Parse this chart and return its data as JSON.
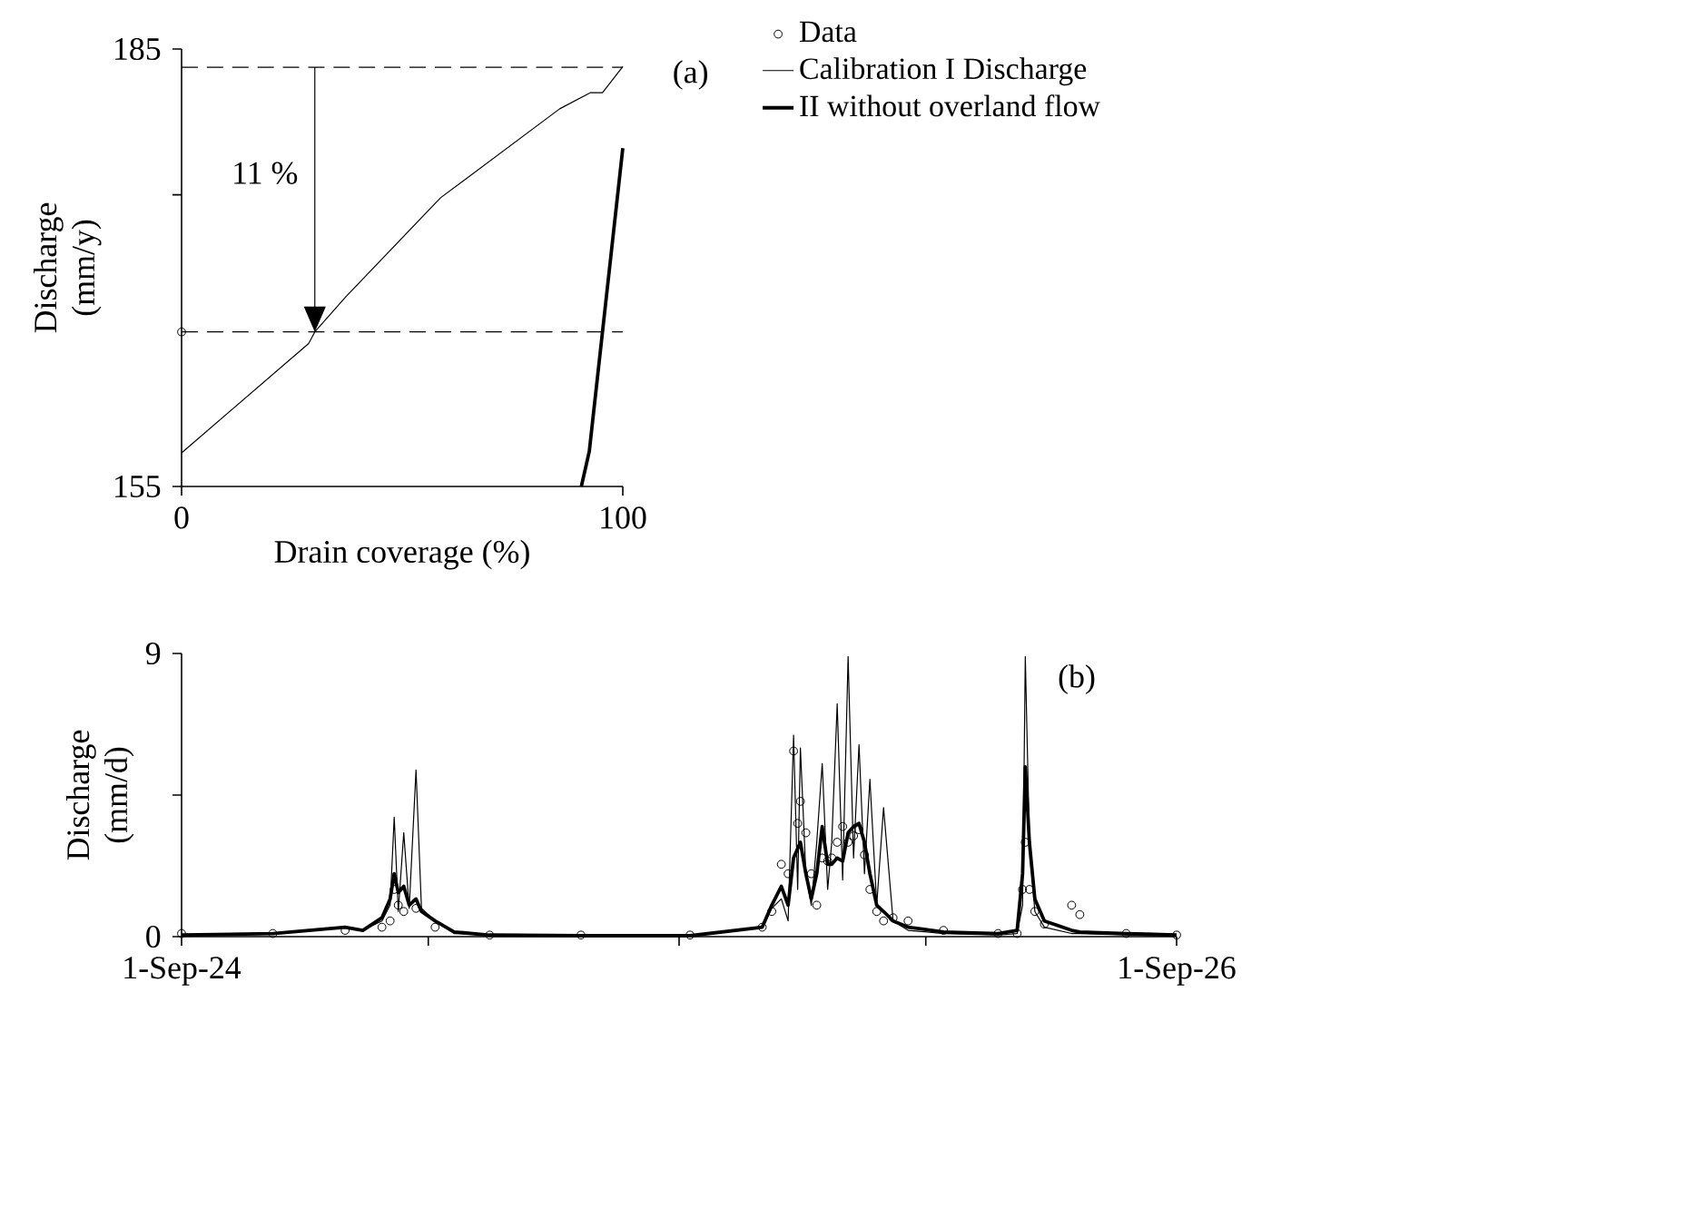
{
  "chart_data": [
    {
      "type": "line",
      "xlabel": "Drain coverage (%)",
      "ylabel": "Discharge (mm/y)",
      "xlim": [
        0,
        100
      ],
      "ylim": [
        155,
        185
      ],
      "xticks": [
        0,
        100
      ],
      "yticks": [
        155,
        {
          "value": 175,
          "label": null
        },
        185
      ],
      "legend": "right",
      "annotations": [
        "(a)",
        "11 %"
      ],
      "ref_lines": [
        {
          "axis": "y",
          "value": 183.75,
          "line_style": "dashed",
          "color": "#000000"
        },
        {
          "axis": "y",
          "value": 165.6,
          "line_style": "dashed",
          "color": "#000000"
        }
      ],
      "series": [
        {
          "name": "Data",
          "type": "scatter",
          "marker": "circle",
          "color": "#000000",
          "x": [
            0
          ],
          "values": [
            165.6
          ]
        },
        {
          "name": "Calibration I Discharge",
          "color": "#000000",
          "x": [
            0,
            28.8,
            30.2,
            37.2,
            58.7,
            85.7,
            92.6,
            95.4,
            100
          ],
          "values": [
            157.3,
            164.8,
            165.6,
            168,
            174.8,
            180.9,
            182,
            182,
            183.8
          ]
        },
        {
          "name": "II without overland flow",
          "color": "#000000",
          "x": [
            90.6,
            92.4,
            100
          ],
          "values": [
            155,
            157.4,
            178.2
          ]
        }
      ]
    },
    {
      "type": "line",
      "ylabel": "Discharge (mm/d)",
      "xlim": [
        "1924-09-01",
        "1926-09-01"
      ],
      "ylim": [
        0,
        9
      ],
      "xticks": [
        {
          "value": "1924-09-01",
          "label": "1-Sep-24"
        },
        {
          "value": "1925-03-01",
          "label": null
        },
        {
          "value": "1925-09-01",
          "label": null
        },
        {
          "value": "1926-03-01",
          "label": null
        },
        {
          "value": "1926-09-01",
          "label": "1-Sep-26"
        }
      ],
      "yticks": [
        0,
        {
          "value": 4.5,
          "label": null
        },
        9
      ],
      "annotations": [
        "(b)"
      ],
      "series": [
        {
          "type": "scatter",
          "marker": "circle",
          "color": "#000000",
          "x": [
            "1924-09-01",
            "1924-11-07",
            "1924-12-30",
            "1925-01-26",
            "1925-02-01",
            "1925-02-04",
            "1925-02-07",
            "1925-02-11",
            "1925-02-20",
            "1925-03-06",
            "1925-04-15",
            "1925-06-21",
            "1925-09-09",
            "1925-11-01",
            "1925-11-08",
            "1925-11-15",
            "1925-11-20",
            "1925-11-24",
            "1925-11-27",
            "1925-11-29",
            "1925-12-03",
            "1925-12-07",
            "1925-12-11",
            "1925-12-15",
            "1925-12-19",
            "1925-12-22",
            "1925-12-26",
            "1925-12-30",
            "1926-01-03",
            "1926-01-07",
            "1926-01-11",
            "1926-01-15",
            "1926-01-19",
            "1926-01-24",
            "1926-01-29",
            "1926-02-05",
            "1926-02-16",
            "1926-03-14",
            "1926-04-23",
            "1926-05-07",
            "1926-05-11",
            "1926-05-13",
            "1926-05-16",
            "1926-05-20",
            "1926-05-27",
            "1926-06-16",
            "1926-06-22",
            "1926-07-26",
            "1926-09-01"
          ],
          "values": [
            0.1,
            0.1,
            0.2,
            0.3,
            0.5,
            1.5,
            1.0,
            0.8,
            0.9,
            0.3,
            0.05,
            0.05,
            0.05,
            0.3,
            0.8,
            2.3,
            2.0,
            5.9,
            3.6,
            4.3,
            3.3,
            2.0,
            1.0,
            2.5,
            2.4,
            2.5,
            3.0,
            3.5,
            3.0,
            3.2,
            3.4,
            2.6,
            1.5,
            0.8,
            0.5,
            0.6,
            0.5,
            0.2,
            0.1,
            0.1,
            1.5,
            3.0,
            1.5,
            0.8,
            0.4,
            1.0,
            0.7,
            0.1,
            0.05
          ]
        },
        {
          "color": "#000000",
          "x": [
            "1924-09-01",
            "1924-11-07",
            "1924-12-30",
            "1925-01-12",
            "1925-01-26",
            "1925-02-01",
            "1925-02-04",
            "1925-02-07",
            "1925-02-11",
            "1925-02-15",
            "1925-02-20",
            "1925-02-24",
            "1925-03-06",
            "1925-03-20",
            "1925-04-15",
            "1925-06-21",
            "1925-09-09",
            "1925-11-01",
            "1925-11-08",
            "1925-11-15",
            "1925-11-20",
            "1925-11-24",
            "1925-11-27",
            "1925-11-29",
            "1925-12-03",
            "1925-12-07",
            "1925-12-11",
            "1925-12-15",
            "1925-12-19",
            "1925-12-22",
            "1925-12-26",
            "1925-12-30",
            "1926-01-03",
            "1926-01-07",
            "1926-01-11",
            "1926-01-15",
            "1926-01-19",
            "1926-01-24",
            "1926-01-29",
            "1926-02-05",
            "1926-02-16",
            "1926-03-14",
            "1926-04-23",
            "1926-05-07",
            "1926-05-11",
            "1926-05-13",
            "1926-05-16",
            "1926-05-20",
            "1926-05-27",
            "1926-06-16",
            "1926-06-22",
            "1926-07-26",
            "1926-09-01"
          ],
          "values": [
            0.05,
            0.1,
            0.3,
            0.2,
            0.5,
            1.0,
            3.8,
            0.8,
            3.3,
            0.9,
            5.3,
            0.9,
            0.5,
            0.1,
            0.05,
            0.02,
            0.02,
            0.3,
            0.9,
            1.2,
            0.5,
            6.4,
            1.5,
            6.0,
            2.0,
            1.0,
            3.0,
            5.5,
            1.5,
            3.0,
            7.4,
            1.8,
            8.9,
            2.5,
            6.1,
            2.0,
            5.0,
            1.0,
            4.1,
            0.5,
            0.2,
            0.1,
            0.05,
            0.1,
            1.0,
            8.9,
            3.0,
            0.8,
            0.3,
            0.1,
            0.1,
            0.05,
            0.02
          ]
        },
        {
          "color": "#000000",
          "x": [
            "1924-09-01",
            "1924-11-07",
            "1924-12-30",
            "1925-01-12",
            "1925-01-26",
            "1925-02-01",
            "1925-02-04",
            "1925-02-07",
            "1925-02-11",
            "1925-02-15",
            "1925-02-20",
            "1925-02-24",
            "1925-03-06",
            "1925-03-20",
            "1925-04-15",
            "1925-06-21",
            "1925-09-09",
            "1925-11-01",
            "1925-11-08",
            "1925-11-15",
            "1925-11-20",
            "1925-11-24",
            "1925-11-27",
            "1925-11-29",
            "1925-12-03",
            "1925-12-07",
            "1925-12-11",
            "1925-12-15",
            "1925-12-19",
            "1925-12-22",
            "1925-12-26",
            "1925-12-30",
            "1926-01-03",
            "1926-01-07",
            "1926-01-11",
            "1926-01-15",
            "1926-01-19",
            "1926-01-24",
            "1926-01-29",
            "1926-02-05",
            "1926-02-16",
            "1926-03-14",
            "1926-04-23",
            "1926-05-07",
            "1926-05-11",
            "1926-05-13",
            "1926-05-16",
            "1926-05-20",
            "1926-05-27",
            "1926-06-16",
            "1926-06-22",
            "1926-07-26",
            "1926-09-01"
          ],
          "values": [
            0.05,
            0.1,
            0.3,
            0.2,
            0.6,
            1.2,
            2.0,
            1.4,
            1.6,
            1.0,
            1.2,
            0.8,
            0.5,
            0.15,
            0.05,
            0.03,
            0.03,
            0.3,
            1.0,
            1.6,
            1.0,
            2.5,
            2.8,
            3.0,
            2.0,
            1.2,
            2.0,
            3.5,
            2.3,
            2.3,
            2.5,
            2.4,
            3.3,
            3.5,
            3.6,
            3.0,
            2.0,
            1.0,
            0.8,
            0.5,
            0.3,
            0.15,
            0.1,
            0.2,
            2.0,
            5.4,
            3.0,
            1.2,
            0.5,
            0.2,
            0.15,
            0.1,
            0.05
          ]
        }
      ]
    }
  ]
}
